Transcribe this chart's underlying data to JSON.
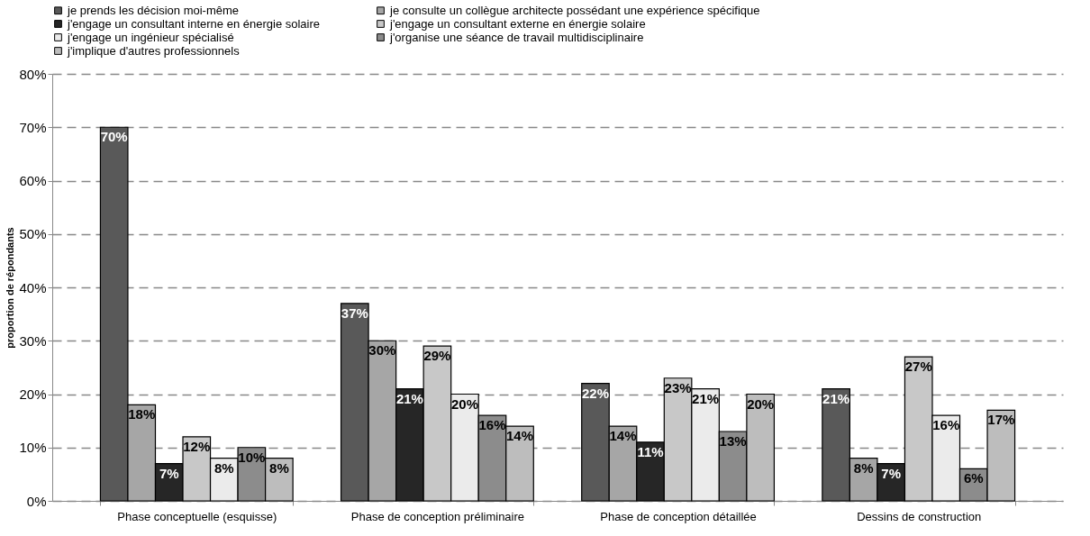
{
  "chart_data": {
    "type": "bar",
    "ylabel": "proportion de répondants",
    "categories": [
      "Phase conceptuelle (esquisse)",
      "Phase de conception préliminaire",
      "Phase de conception détaillée",
      "Dessins de construction"
    ],
    "series": [
      {
        "name": "je prends les décision moi-même",
        "color": "#595959",
        "values": [
          70,
          37,
          22,
          21
        ],
        "value_labels": [
          "70%",
          "37%",
          "22%",
          "21%"
        ]
      },
      {
        "name": "je consulte un collègue architecte possédant une expérience spécifique",
        "color": "#a6a6a6",
        "values": [
          18,
          30,
          14,
          8
        ],
        "value_labels": [
          "18%",
          "30%",
          "14%",
          "8%"
        ]
      },
      {
        "name": "j'engage un consultant interne en énergie solaire",
        "color": "#262626",
        "values": [
          7,
          21,
          11,
          7
        ],
        "value_labels": [
          "7%",
          "21%",
          "11%",
          "7%"
        ]
      },
      {
        "name": "j'engage un consultant externe en énergie solaire",
        "color": "#c8c8c8",
        "values": [
          12,
          29,
          23,
          27
        ],
        "value_labels": [
          "12%",
          "29%",
          "23%",
          "27%"
        ]
      },
      {
        "name": "j'engage un ingénieur spécialisé",
        "color": "#ebebeb",
        "values": [
          8,
          20,
          21,
          16
        ],
        "value_labels": [
          "8%",
          "20%",
          "21%",
          "16%"
        ]
      },
      {
        "name": "j'organise une séance de travail multidisciplinaire",
        "color": "#8c8c8c",
        "values": [
          10,
          16,
          13,
          6
        ],
        "value_labels": [
          "10%",
          "16%",
          "13%",
          "6%"
        ]
      },
      {
        "name": "j'implique d'autres professionnels",
        "color": "#bdbdbd",
        "values": [
          8,
          14,
          20,
          17
        ],
        "value_labels": [
          "8%",
          "14%",
          "20%",
          "17%"
        ]
      }
    ],
    "ylim": [
      0,
      80
    ],
    "yticks": [
      {
        "value": 0,
        "label": "0%"
      },
      {
        "value": 10,
        "label": "10%"
      },
      {
        "value": 20,
        "label": "20%"
      },
      {
        "value": 30,
        "label": "30%"
      },
      {
        "value": 40,
        "label": "40%"
      },
      {
        "value": 50,
        "label": "50%"
      },
      {
        "value": 60,
        "label": "60%"
      },
      {
        "value": 70,
        "label": "70%"
      },
      {
        "value": 80,
        "label": "80%"
      }
    ],
    "grid": "y",
    "line_style": "dashed",
    "legend": "top"
  }
}
